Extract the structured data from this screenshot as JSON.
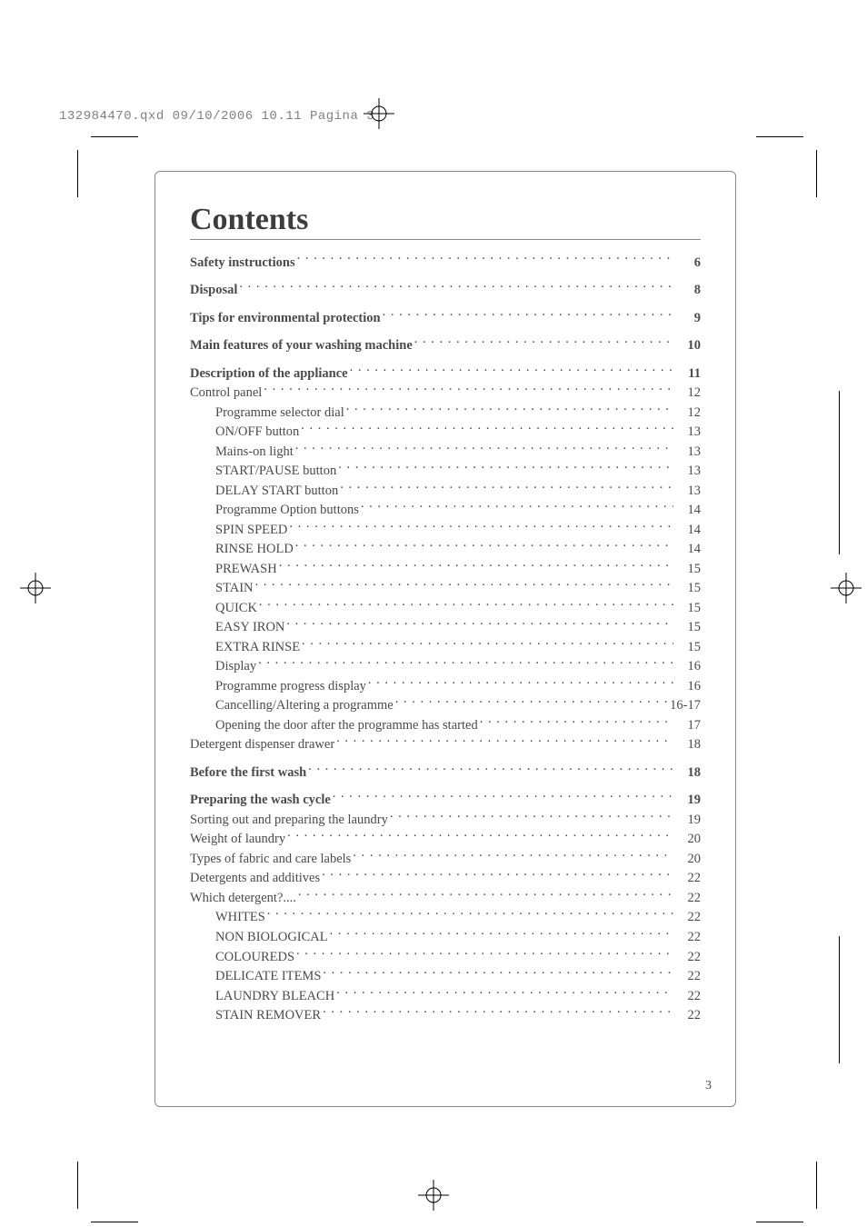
{
  "header_line": "132984470.qxd  09/10/2006  10.11  Pagina 3",
  "title": "Contents",
  "page_number": "3",
  "colors": {
    "text": "#4a4a4a",
    "title": "#3d3d3d",
    "header": "#808080",
    "rule": "#888888",
    "background": "#ffffff"
  },
  "typography": {
    "title_fontsize_pt": 26,
    "body_fontsize_pt": 11,
    "header_fontsize_pt": 10,
    "title_font": "Georgia serif",
    "body_font": "Times/Optima-like serif",
    "header_font": "Courier monospace"
  },
  "toc": [
    {
      "label": "Safety instructions",
      "page": "6",
      "bold": true,
      "indent": 0,
      "gap_before": false
    },
    {
      "label": "Disposal",
      "page": "8",
      "bold": true,
      "indent": 0,
      "gap_before": true
    },
    {
      "label": "Tips for environmental protection",
      "page": "9",
      "bold": true,
      "indent": 0,
      "gap_before": true
    },
    {
      "label": "Main features of your washing machine",
      "page": "10",
      "bold": true,
      "indent": 0,
      "gap_before": true
    },
    {
      "label": "Description of the appliance",
      "page": "11",
      "bold": true,
      "indent": 0,
      "gap_before": true
    },
    {
      "label": "Control panel",
      "page": "12",
      "bold": false,
      "indent": 0,
      "gap_before": false
    },
    {
      "label": "Programme selector dial",
      "page": "12",
      "bold": false,
      "indent": 1,
      "gap_before": false
    },
    {
      "label": "ON/OFF button",
      "page": "13",
      "bold": false,
      "indent": 1,
      "gap_before": false
    },
    {
      "label": "Mains-on light",
      "page": "13",
      "bold": false,
      "indent": 1,
      "gap_before": false
    },
    {
      "label": "START/PAUSE button",
      "page": "13",
      "bold": false,
      "indent": 1,
      "gap_before": false
    },
    {
      "label": "DELAY START button",
      "page": "13",
      "bold": false,
      "indent": 1,
      "gap_before": false
    },
    {
      "label": "Programme Option buttons",
      "page": "14",
      "bold": false,
      "indent": 1,
      "gap_before": false
    },
    {
      "label": "SPIN SPEED",
      "page": "14",
      "bold": false,
      "indent": 1,
      "gap_before": false
    },
    {
      "label": "RINSE HOLD",
      "page": "14",
      "bold": false,
      "indent": 1,
      "gap_before": false
    },
    {
      "label": "PREWASH",
      "page": "15",
      "bold": false,
      "indent": 1,
      "gap_before": false
    },
    {
      "label": "STAIN",
      "page": "15",
      "bold": false,
      "indent": 1,
      "gap_before": false
    },
    {
      "label": "QUICK",
      "page": "15",
      "bold": false,
      "indent": 1,
      "gap_before": false
    },
    {
      "label": "EASY IRON",
      "page": "15",
      "bold": false,
      "indent": 1,
      "gap_before": false
    },
    {
      "label": "EXTRA RINSE",
      "page": "15",
      "bold": false,
      "indent": 1,
      "gap_before": false
    },
    {
      "label": "Display",
      "page": "16",
      "bold": false,
      "indent": 1,
      "gap_before": false
    },
    {
      "label": "Programme progress display",
      "page": "16",
      "bold": false,
      "indent": 1,
      "gap_before": false
    },
    {
      "label": "Cancelling/Altering a programme",
      "page": "16-17",
      "bold": false,
      "indent": 1,
      "gap_before": false
    },
    {
      "label": "Opening the door after the programme has started",
      "page": "17",
      "bold": false,
      "indent": 1,
      "gap_before": false
    },
    {
      "label": "Detergent dispenser drawer",
      "page": "18",
      "bold": false,
      "indent": 0,
      "gap_before": false
    },
    {
      "label": "Before the first wash",
      "page": "18",
      "bold": true,
      "indent": 0,
      "gap_before": true
    },
    {
      "label": "Preparing the wash cycle",
      "page": "19",
      "bold": true,
      "indent": 0,
      "gap_before": true
    },
    {
      "label": "Sorting out and preparing the laundry",
      "page": "19",
      "bold": false,
      "indent": 0,
      "gap_before": false
    },
    {
      "label": "Weight of laundry",
      "page": "20",
      "bold": false,
      "indent": 0,
      "gap_before": false
    },
    {
      "label": "Types of fabric and care labels",
      "page": "20",
      "bold": false,
      "indent": 0,
      "gap_before": false
    },
    {
      "label": "Detergents and additives",
      "page": "22",
      "bold": false,
      "indent": 0,
      "gap_before": false
    },
    {
      "label": "Which detergent?....",
      "page": "22",
      "bold": false,
      "indent": 0,
      "gap_before": false
    },
    {
      "label": "WHITES",
      "page": "22",
      "bold": false,
      "indent": 1,
      "gap_before": false
    },
    {
      "label": "NON BIOLOGICAL",
      "page": "22",
      "bold": false,
      "indent": 1,
      "gap_before": false
    },
    {
      "label": "COLOUREDS",
      "page": "22",
      "bold": false,
      "indent": 1,
      "gap_before": false
    },
    {
      "label": "DELICATE ITEMS",
      "page": "22",
      "bold": false,
      "indent": 1,
      "gap_before": false
    },
    {
      "label": "LAUNDRY BLEACH",
      "page": "22",
      "bold": false,
      "indent": 1,
      "gap_before": false
    },
    {
      "label": "STAIN REMOVER",
      "page": "22",
      "bold": false,
      "indent": 1,
      "gap_before": false
    }
  ]
}
